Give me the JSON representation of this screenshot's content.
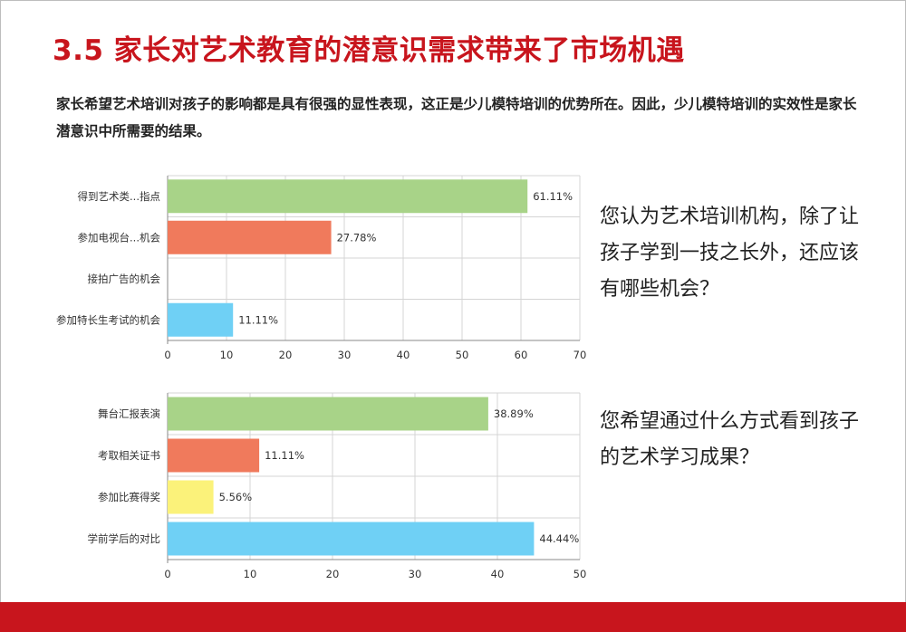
{
  "title": "3.5 家长对艺术教育的潜意识需求带来了市场机遇",
  "intro": "家长希望艺术培训对孩子的影响都是具有很强的显性表现，这正是少儿模特培训的优势所在。因此，少儿模特培训的实效性是家长潜意识中所需要的结果。",
  "questions": [
    "您认为艺术培训机构，除了让孩子学到一技之长外，还应该有哪些机会？",
    "您希望通过什么方式看到孩子的艺术学习成果？"
  ],
  "colors": {
    "accent": "#c8151d",
    "bars": [
      "#a8d388",
      "#f07a5c",
      "#fbf27a",
      "#6fd0f5"
    ]
  },
  "chart_data": [
    {
      "type": "bar",
      "orientation": "horizontal",
      "categories": [
        "得到艺术类...指点",
        "参加电视台...机会",
        "接拍广告的机会",
        "参加特长生考试的机会"
      ],
      "values": [
        61.11,
        27.78,
        0,
        11.11
      ],
      "value_labels": [
        "61.11%",
        "27.78%",
        "",
        "11.11%"
      ],
      "bar_colors": [
        "#a8d388",
        "#f07a5c",
        "#fbf27a",
        "#6fd0f5"
      ],
      "xlim": [
        0,
        70
      ],
      "xticks": [
        0,
        10,
        20,
        30,
        40,
        50,
        60,
        70
      ],
      "grid": true
    },
    {
      "type": "bar",
      "orientation": "horizontal",
      "categories": [
        "舞台汇报表演",
        "考取相关证书",
        "参加比赛得奖",
        "学前学后的对比"
      ],
      "values": [
        38.89,
        11.11,
        5.56,
        44.44
      ],
      "value_labels": [
        "38.89%",
        "11.11%",
        "5.56%",
        "44.44%"
      ],
      "bar_colors": [
        "#a8d388",
        "#f07a5c",
        "#fbf27a",
        "#6fd0f5"
      ],
      "xlim": [
        0,
        50
      ],
      "xticks": [
        0,
        10,
        20,
        30,
        40,
        50
      ],
      "grid": true
    }
  ]
}
